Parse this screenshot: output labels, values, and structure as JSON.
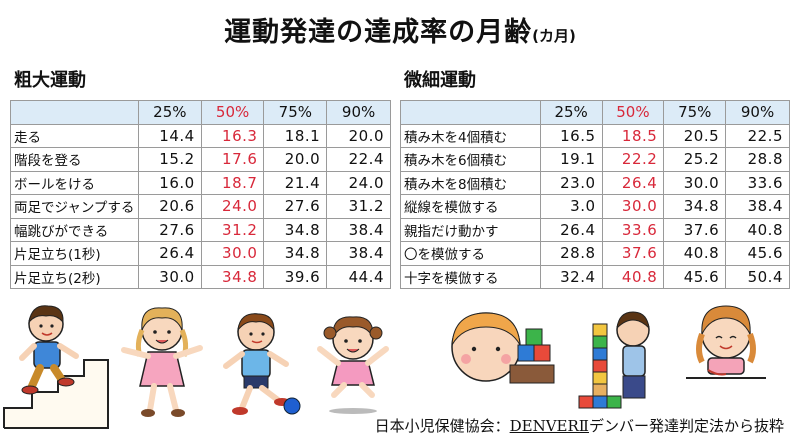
{
  "title": {
    "main": "運動発達の達成率の月齢",
    "unit": "(カ月)"
  },
  "percentile_headers": [
    "25%",
    "50%",
    "75%",
    "90%"
  ],
  "colors": {
    "header_bg": "#dcebf7",
    "median_text": "#d8283a",
    "grid": "#9a9a9a"
  },
  "gross_motor": {
    "heading": "粗大運動",
    "rows": [
      {
        "label": "走る",
        "values": [
          "14.4",
          "16.3",
          "18.1",
          "20.0"
        ]
      },
      {
        "label": "階段を登る",
        "values": [
          "15.2",
          "17.6",
          "20.0",
          "22.4"
        ]
      },
      {
        "label": "ボールをける",
        "values": [
          "16.0",
          "18.7",
          "21.4",
          "24.0"
        ]
      },
      {
        "label": "両足でジャンプする",
        "values": [
          "20.6",
          "24.0",
          "27.6",
          "31.2"
        ]
      },
      {
        "label": "幅跳びができる",
        "values": [
          "27.6",
          "31.2",
          "34.8",
          "38.4"
        ]
      },
      {
        "label": "片足立ち(1秒)",
        "values": [
          "26.4",
          "30.0",
          "34.8",
          "38.4"
        ]
      },
      {
        "label": "片足立ち(2秒)",
        "values": [
          "30.0",
          "34.8",
          "39.6",
          "44.4"
        ]
      }
    ]
  },
  "fine_motor": {
    "heading": "微細運動",
    "rows": [
      {
        "label": "積み木を4個積む",
        "values": [
          "16.5",
          "18.5",
          "20.5",
          "22.5"
        ]
      },
      {
        "label": "積み木を6個積む",
        "values": [
          "19.1",
          "22.2",
          "25.2",
          "28.8"
        ]
      },
      {
        "label": "積み木を8個積む",
        "values": [
          "23.0",
          "26.4",
          "30.0",
          "33.6"
        ]
      },
      {
        "label": "縦線を模倣する",
        "values": [
          "3.0",
          "30.0",
          "34.8",
          "38.4"
        ]
      },
      {
        "label": "親指だけ動かす",
        "values": [
          "26.4",
          "33.6",
          "37.6",
          "40.8"
        ]
      },
      {
        "label": "〇を模倣する",
        "values": [
          "28.8",
          "37.6",
          "40.8",
          "45.6"
        ]
      },
      {
        "label": "十字を模倣する",
        "values": [
          "32.4",
          "40.8",
          "45.6",
          "50.4"
        ]
      }
    ]
  },
  "source": {
    "prefix": "日本小児保健協会：",
    "name": "DENVERⅡ",
    "suffix": "デンバー発達判定法から抜粋"
  },
  "illustrations": [
    {
      "icon": "child-climbing-stairs-illustration"
    },
    {
      "icon": "girl-jumping-illustration"
    },
    {
      "icon": "boy-kicking-ball-illustration"
    },
    {
      "icon": "girl-jumping-arms-up-illustration"
    },
    {
      "icon": "baby-playing-blocks-illustration"
    },
    {
      "icon": "child-stacking-blocks-illustration"
    },
    {
      "icon": "girl-drawing-illustration"
    }
  ]
}
